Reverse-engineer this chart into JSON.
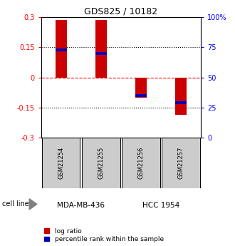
{
  "title": "GDS825 / 10182",
  "samples": [
    "GSM21254",
    "GSM21255",
    "GSM21256",
    "GSM21257"
  ],
  "log_ratios": [
    0.285,
    0.285,
    -0.1,
    -0.185
  ],
  "percentile_ranks": [
    0.73,
    0.7,
    0.35,
    0.29
  ],
  "ylim": [
    -0.3,
    0.3
  ],
  "yticks_left": [
    -0.3,
    -0.15,
    0,
    0.15,
    0.3
  ],
  "yticks_right_vals": [
    0,
    25,
    50,
    75,
    100
  ],
  "hlines_dotted": [
    0.15,
    -0.15
  ],
  "cell_lines": [
    {
      "label": "MDA-MB-436",
      "color": "#ccffcc",
      "samples": [
        0,
        1
      ]
    },
    {
      "label": "HCC 1954",
      "color": "#55dd55",
      "samples": [
        2,
        3
      ]
    }
  ],
  "bar_color": "#cc0000",
  "blue_color": "#0000bb",
  "bar_width": 0.28,
  "sample_box_color": "#cccccc",
  "legend_red_label": "log ratio",
  "legend_blue_label": "percentile rank within the sample",
  "cell_line_label": "cell line"
}
